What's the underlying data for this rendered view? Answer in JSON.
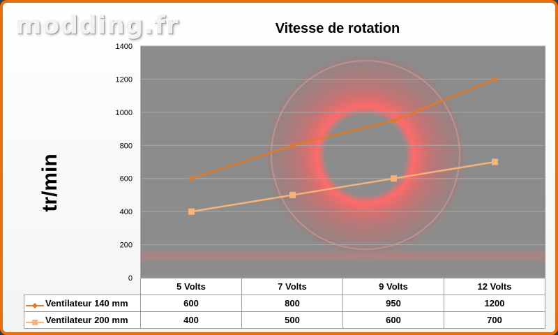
{
  "watermark": "modding.fr",
  "chart_data": {
    "type": "line",
    "title": "Vitesse de rotation",
    "ylabel": "tr/min",
    "xlabel": "",
    "categories": [
      "5 Volts",
      "7 Volts",
      "9 Volts",
      "12 Volts"
    ],
    "ylim": [
      0,
      1400
    ],
    "yticks": [
      0,
      200,
      400,
      600,
      800,
      1000,
      1200,
      1400
    ],
    "grid": true,
    "legend": "data-table",
    "series": [
      {
        "name": "Ventilateur 140 mm",
        "values": [
          600,
          800,
          950,
          1200
        ],
        "color": "#e07a26",
        "marker": "diamond"
      },
      {
        "name": "Ventilateur 200 mm",
        "values": [
          400,
          500,
          600,
          700
        ],
        "color": "#f5b27a",
        "marker": "square"
      }
    ]
  },
  "colors": {
    "frame": "#e8700f",
    "plot_background": "#8c8c8c",
    "glow": "#ff4a4a"
  }
}
